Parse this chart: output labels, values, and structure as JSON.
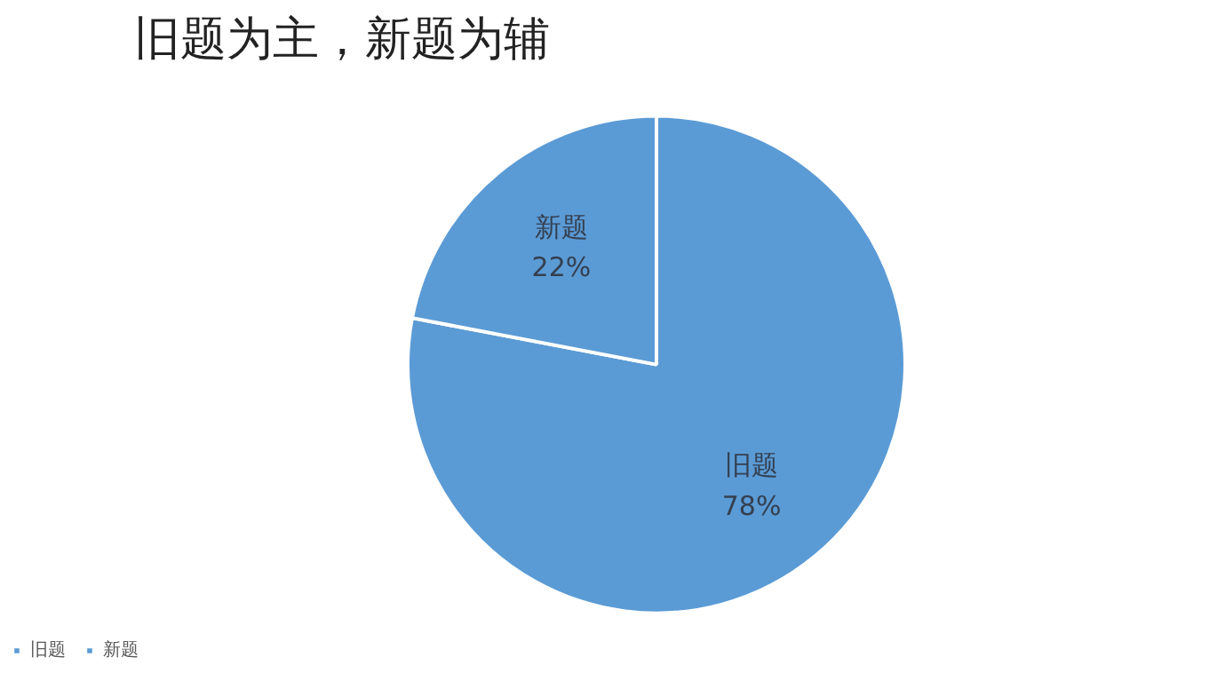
{
  "chart_data": {
    "type": "pie",
    "title": "旧题为主，新题为辅",
    "categories": [
      "旧题",
      "新题"
    ],
    "values": [
      78,
      22
    ],
    "colors": [
      "#5b9bd5",
      "#5b9bd5"
    ],
    "value_labels": [
      "78%",
      "22%"
    ],
    "legend": "bottom left"
  }
}
